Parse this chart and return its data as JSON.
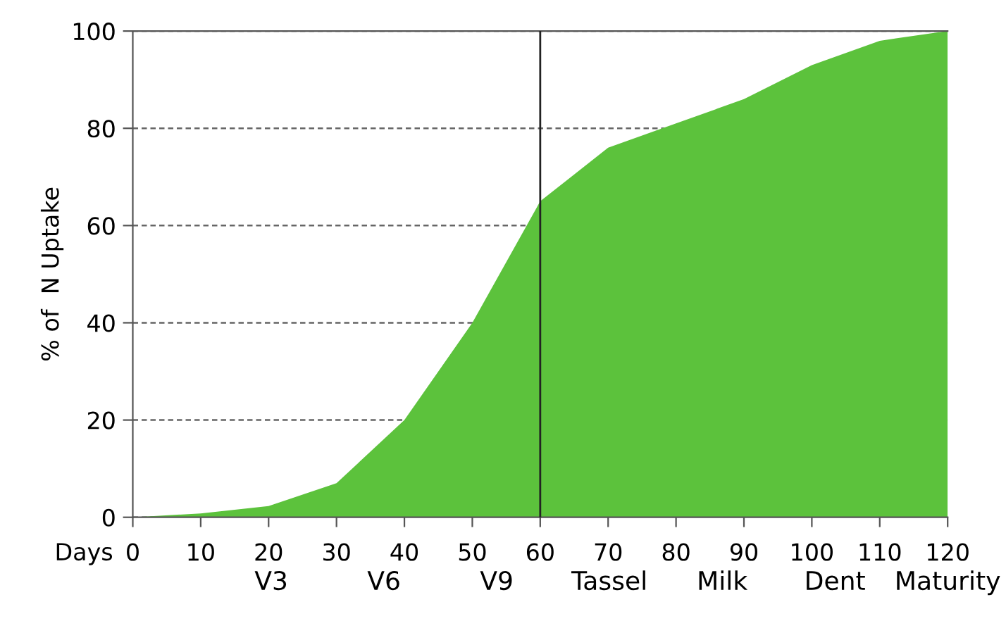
{
  "chart_data": {
    "type": "area",
    "xlabel": "Days",
    "ylabel": "% of  N Uptake",
    "x": [
      0,
      10,
      20,
      30,
      40,
      50,
      60,
      70,
      80,
      90,
      100,
      110,
      120
    ],
    "series": [
      {
        "color": "#5cc23c",
        "values": [
          0,
          0.8,
          2.3,
          7,
          20,
          40,
          65,
          76,
          81,
          86,
          93,
          98,
          100
        ]
      }
    ],
    "xlim": [
      0,
      120
    ],
    "xticks": [
      0,
      10,
      20,
      30,
      40,
      50,
      60,
      70,
      80,
      90,
      100,
      110,
      120
    ],
    "ylim": [
      0,
      100
    ],
    "yticks": [
      0,
      20,
      40,
      60,
      80,
      100
    ],
    "grid": "y",
    "line_style": "dashed",
    "ref_lines": [
      {
        "axis": "x",
        "value": 60,
        "color": "#222222"
      }
    ],
    "annotations": [
      "V3",
      "V6",
      "V9",
      "Tassel",
      "Milk",
      "Dent",
      "Maturity"
    ]
  }
}
